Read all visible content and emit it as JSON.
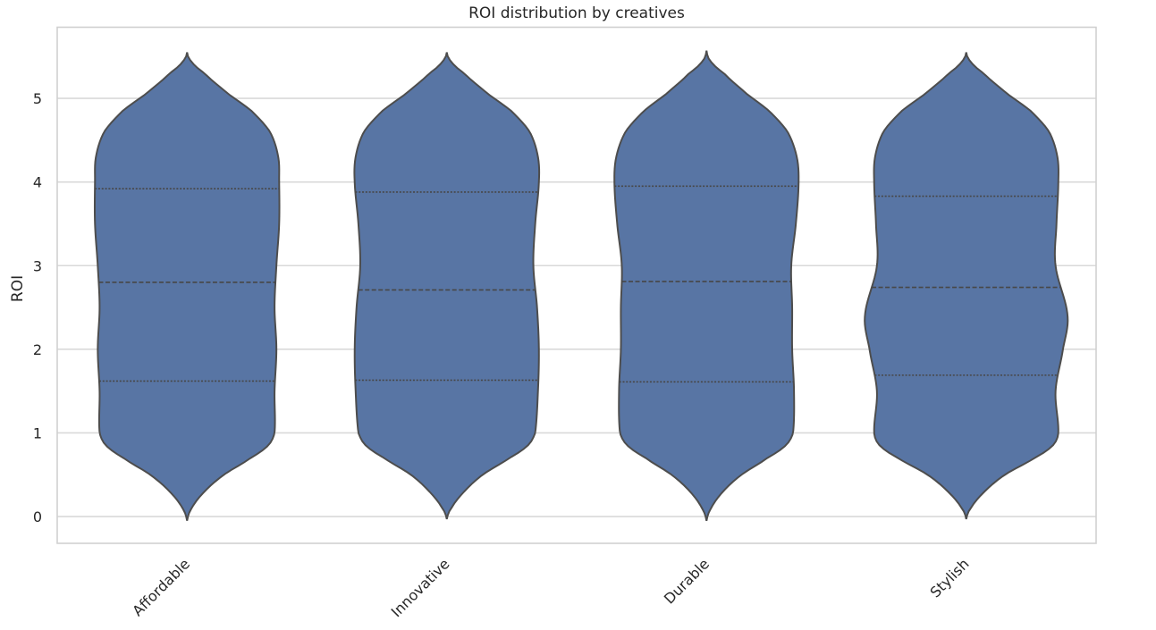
{
  "chart_data": {
    "type": "violin",
    "title": "ROI distribution by creatives",
    "xlabel": "",
    "ylabel": "ROI",
    "categories": [
      "Affordable",
      "Innovative",
      "Durable",
      "Stylish"
    ],
    "ylim": [
      -0.32,
      5.85
    ],
    "yticks": [
      0,
      1,
      2,
      3,
      4,
      5
    ],
    "grid": true,
    "fill_color": "#5875a4",
    "edge_color": "#4d4d4d",
    "grid_color": "#d9d9d9",
    "violins": [
      {
        "category": "Affordable",
        "min": -0.05,
        "max": 5.55,
        "quartiles": [
          1.62,
          2.8,
          3.92
        ],
        "density_profile": [
          [
            -0.05,
            0.0
          ],
          [
            0.1,
            0.05
          ],
          [
            0.3,
            0.19
          ],
          [
            0.5,
            0.4
          ],
          [
            0.7,
            0.69
          ],
          [
            0.85,
            0.88
          ],
          [
            1.0,
            0.95
          ],
          [
            1.5,
            0.95
          ],
          [
            2.0,
            0.97
          ],
          [
            2.5,
            0.95
          ],
          [
            3.0,
            0.97
          ],
          [
            3.5,
            1.0
          ],
          [
            4.0,
            1.0
          ],
          [
            4.3,
            0.99
          ],
          [
            4.6,
            0.9
          ],
          [
            4.85,
            0.7
          ],
          [
            5.05,
            0.45
          ],
          [
            5.3,
            0.19
          ],
          [
            5.45,
            0.04
          ],
          [
            5.55,
            0.0
          ]
        ]
      },
      {
        "category": "Innovative",
        "min": -0.03,
        "max": 5.55,
        "quartiles": [
          1.63,
          2.71,
          3.88
        ],
        "density_profile": [
          [
            -0.03,
            0.0
          ],
          [
            0.1,
            0.05
          ],
          [
            0.3,
            0.19
          ],
          [
            0.5,
            0.39
          ],
          [
            0.7,
            0.68
          ],
          [
            0.85,
            0.88
          ],
          [
            1.0,
            0.96
          ],
          [
            1.5,
            0.99
          ],
          [
            2.0,
            1.0
          ],
          [
            2.5,
            0.98
          ],
          [
            3.0,
            0.94
          ],
          [
            3.5,
            0.96
          ],
          [
            4.0,
            1.0
          ],
          [
            4.3,
            0.99
          ],
          [
            4.6,
            0.9
          ],
          [
            4.85,
            0.7
          ],
          [
            5.05,
            0.45
          ],
          [
            5.3,
            0.19
          ],
          [
            5.45,
            0.04
          ],
          [
            5.55,
            0.0
          ]
        ]
      },
      {
        "category": "Durable",
        "min": -0.05,
        "max": 5.57,
        "quartiles": [
          1.61,
          2.81,
          3.95
        ],
        "density_profile": [
          [
            -0.05,
            0.0
          ],
          [
            0.1,
            0.05
          ],
          [
            0.3,
            0.18
          ],
          [
            0.5,
            0.38
          ],
          [
            0.7,
            0.66
          ],
          [
            0.85,
            0.86
          ],
          [
            1.0,
            0.94
          ],
          [
            1.5,
            0.95
          ],
          [
            2.0,
            0.93
          ],
          [
            2.5,
            0.93
          ],
          [
            3.0,
            0.92
          ],
          [
            3.5,
            0.97
          ],
          [
            4.0,
            1.0
          ],
          [
            4.3,
            0.98
          ],
          [
            4.6,
            0.88
          ],
          [
            4.85,
            0.68
          ],
          [
            5.05,
            0.44
          ],
          [
            5.3,
            0.19
          ],
          [
            5.45,
            0.04
          ],
          [
            5.57,
            0.0
          ]
        ]
      },
      {
        "category": "Stylish",
        "min": -0.03,
        "max": 5.55,
        "quartiles": [
          1.69,
          2.74,
          3.83
        ],
        "density_profile": [
          [
            -0.03,
            0.0
          ],
          [
            0.1,
            0.05
          ],
          [
            0.3,
            0.2
          ],
          [
            0.5,
            0.42
          ],
          [
            0.7,
            0.74
          ],
          [
            0.85,
            0.94
          ],
          [
            1.0,
            1.0
          ],
          [
            1.5,
            0.97
          ],
          [
            2.0,
            1.05
          ],
          [
            2.4,
            1.1
          ],
          [
            3.0,
            0.97
          ],
          [
            3.5,
            0.98
          ],
          [
            4.0,
            1.0
          ],
          [
            4.3,
            0.99
          ],
          [
            4.6,
            0.9
          ],
          [
            4.85,
            0.7
          ],
          [
            5.05,
            0.45
          ],
          [
            5.3,
            0.19
          ],
          [
            5.45,
            0.04
          ],
          [
            5.55,
            0.0
          ]
        ]
      }
    ]
  }
}
